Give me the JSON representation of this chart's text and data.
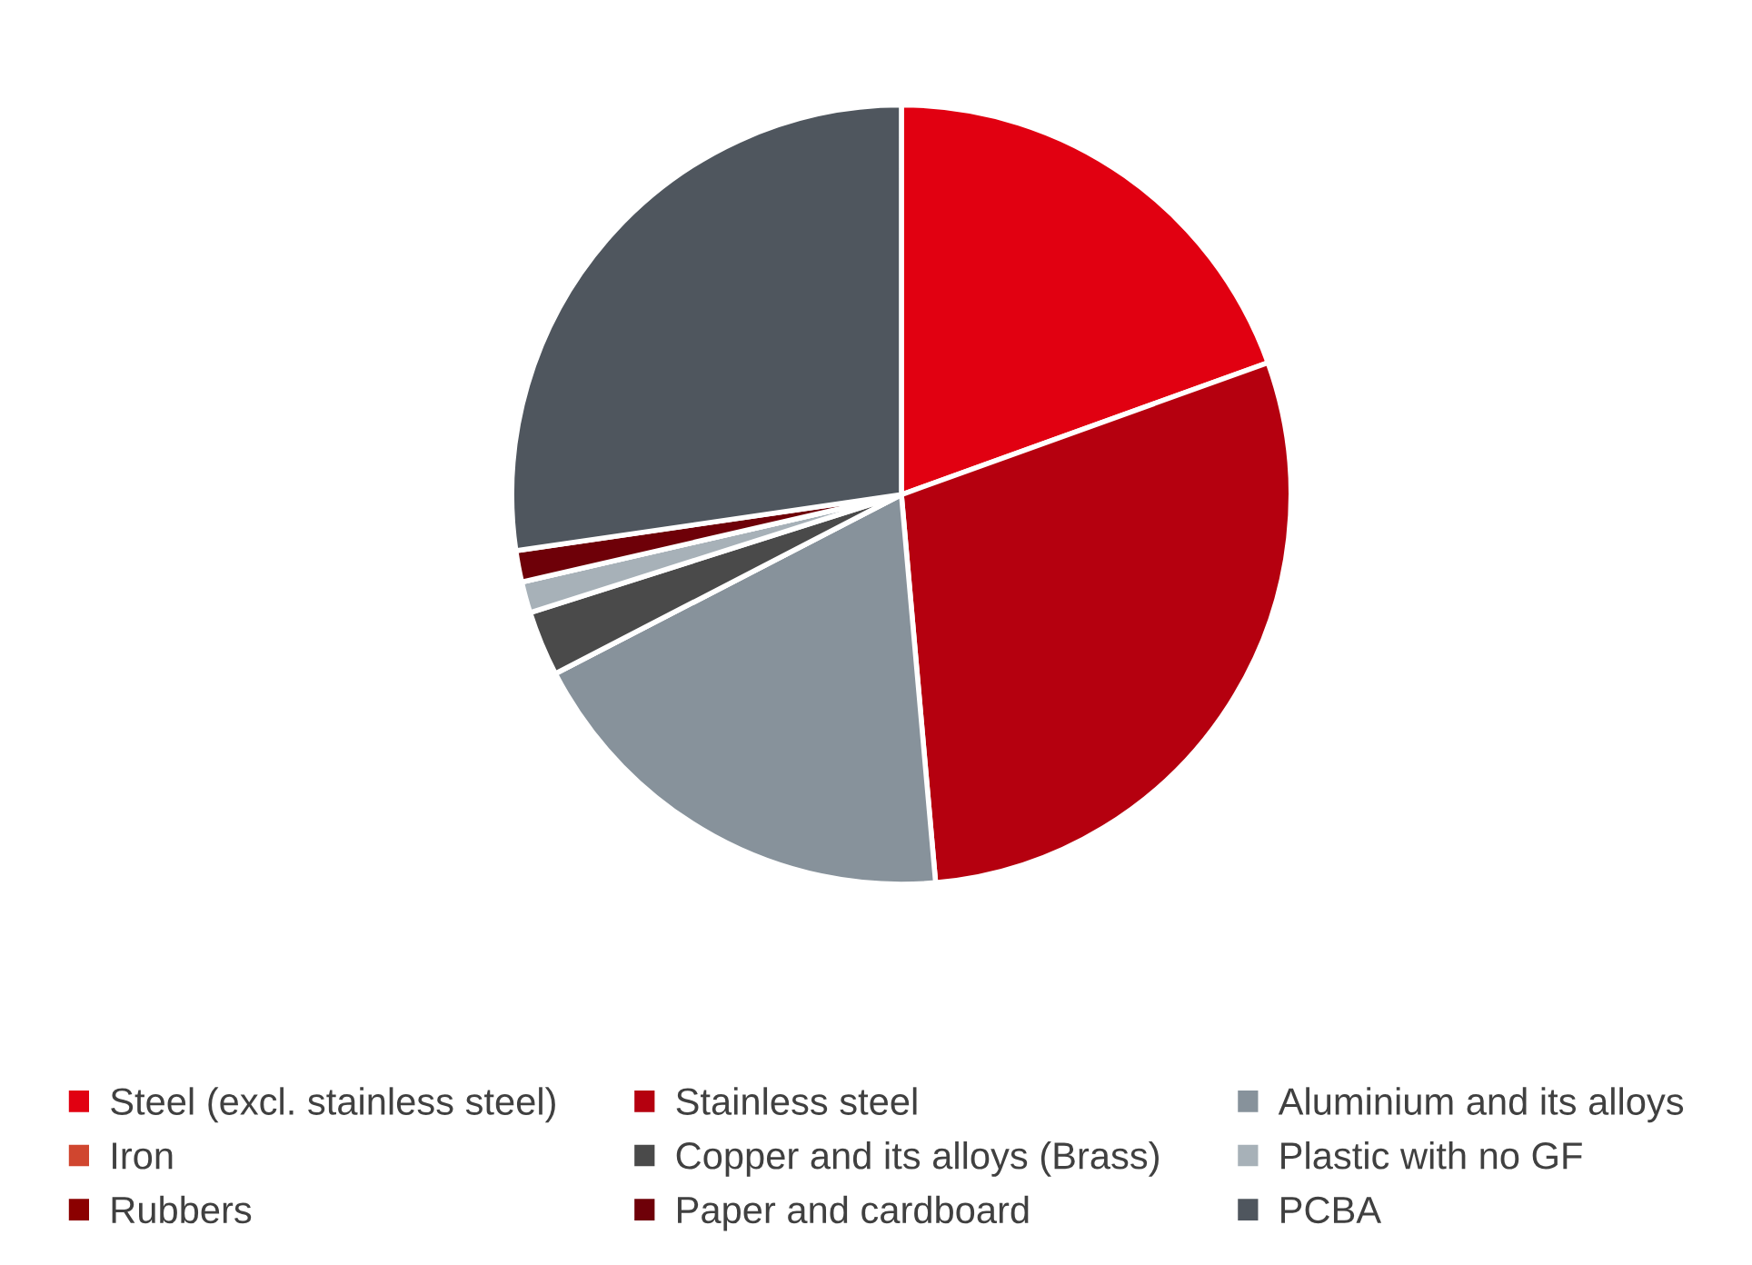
{
  "chart_data": {
    "type": "pie",
    "categories": [
      "Steel (excl. stainless steel)",
      "Stainless steel",
      "Aluminium and its alloys",
      "Iron",
      "Copper and its alloys (Brass)",
      "Plastic with no GF",
      "Rubbers",
      "Paper and cardboard",
      "PCBA"
    ],
    "values": [
      19.5,
      29.1,
      18.8,
      null,
      2.7,
      1.3,
      null,
      1.3,
      27.3
    ],
    "colors": [
      "#e10011",
      "#b5000f",
      "#87929b",
      "#d0462f",
      "#4a4a4a",
      "#a7b1b8",
      "#8b0000",
      "#6e0008",
      "#4f565e"
    ],
    "legend": "bottom"
  }
}
